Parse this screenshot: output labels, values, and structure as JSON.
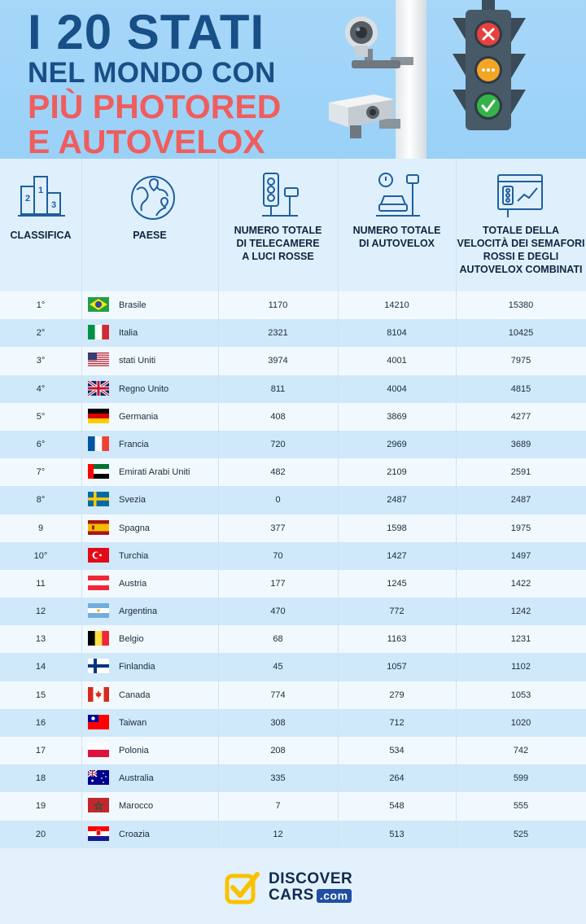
{
  "title": {
    "line1": "I 20 STATI",
    "line2": "NEL MONDO CON",
    "line3": "PIÙ PHOTORED",
    "line4": "E AUTOVELOX"
  },
  "columns": {
    "rank": "CLASSIFICA",
    "country": "PAESE",
    "red_light": [
      "NUMERO TOTALE",
      "DI TELECAMERE",
      "A LUCI ROSSE"
    ],
    "speed": [
      "NUMERO TOTALE",
      "DI AUTOVELOX"
    ],
    "total": [
      "TOTALE DELLA",
      "VELOCITÀ DEI SEMAFORI",
      "ROSSI E DEGLI",
      "AUTOVELOX COMBINATI"
    ]
  },
  "icons": {
    "rank": "podium-icon",
    "country": "globe-icon",
    "red_light": "traffic-camera-icon",
    "speed": "speed-camera-icon",
    "total": "stats-dashboard-icon"
  },
  "colors": {
    "title_blue": "#184f86",
    "title_red": "#ef5d5d",
    "row_alt": "#cfe8fa",
    "row_base": "#f2f9fe",
    "logo_yellow": "#f8c200",
    "logo_navy": "#0f2a4e"
  },
  "chart_data": {
    "type": "table",
    "columns": [
      "CLASSIFICA",
      "PAESE",
      "NUMERO TOTALE DI TELECAMERE A LUCI ROSSE",
      "NUMERO TOTALE DI AUTOVELOX",
      "TOTALE DELLA VELOCITÀ DEI SEMAFORI ROSSI E DEGLI AUTOVELOX COMBINATI"
    ],
    "rows": [
      {
        "rank": "1°",
        "country": "Brasile",
        "flag": "br",
        "red_light": 1170,
        "speed": 14210,
        "total": 15380
      },
      {
        "rank": "2°",
        "country": "Italia",
        "flag": "it",
        "red_light": 2321,
        "speed": 8104,
        "total": 10425
      },
      {
        "rank": "3°",
        "country": "stati Uniti",
        "flag": "us",
        "red_light": 3974,
        "speed": 4001,
        "total": 7975
      },
      {
        "rank": "4°",
        "country": "Regno Unito",
        "flag": "gb",
        "red_light": 811,
        "speed": 4004,
        "total": 4815
      },
      {
        "rank": "5°",
        "country": "Germania",
        "flag": "de",
        "red_light": 408,
        "speed": 3869,
        "total": 4277
      },
      {
        "rank": "6°",
        "country": "Francia",
        "flag": "fr",
        "red_light": 720,
        "speed": 2969,
        "total": 3689
      },
      {
        "rank": "7°",
        "country": "Emirati Arabi Uniti",
        "flag": "ae",
        "red_light": 482,
        "speed": 2109,
        "total": 2591
      },
      {
        "rank": "8°",
        "country": "Svezia",
        "flag": "se",
        "red_light": 0,
        "speed": 2487,
        "total": 2487
      },
      {
        "rank": "9",
        "country": "Spagna",
        "flag": "es",
        "red_light": 377,
        "speed": 1598,
        "total": 1975
      },
      {
        "rank": "10°",
        "country": "Turchia",
        "flag": "tr",
        "red_light": 70,
        "speed": 1427,
        "total": 1497
      },
      {
        "rank": "11",
        "country": "Austria",
        "flag": "at",
        "red_light": 177,
        "speed": 1245,
        "total": 1422
      },
      {
        "rank": "12",
        "country": "Argentina",
        "flag": "ar",
        "red_light": 470,
        "speed": 772,
        "total": 1242
      },
      {
        "rank": "13",
        "country": "Belgio",
        "flag": "be",
        "red_light": 68,
        "speed": 1163,
        "total": 1231
      },
      {
        "rank": "14",
        "country": "Finlandia",
        "flag": "fi",
        "red_light": 45,
        "speed": 1057,
        "total": 1102
      },
      {
        "rank": "15",
        "country": "Canada",
        "flag": "ca",
        "red_light": 774,
        "speed": 279,
        "total": 1053
      },
      {
        "rank": "16",
        "country": "Taiwan",
        "flag": "tw",
        "red_light": 308,
        "speed": 712,
        "total": 1020
      },
      {
        "rank": "17",
        "country": "Polonia",
        "flag": "pl",
        "red_light": 208,
        "speed": 534,
        "total": 742
      },
      {
        "rank": "18",
        "country": "Australia",
        "flag": "au",
        "red_light": 335,
        "speed": 264,
        "total": 599
      },
      {
        "rank": "19",
        "country": "Marocco",
        "flag": "ma",
        "red_light": 7,
        "speed": 548,
        "total": 555
      },
      {
        "rank": "20",
        "country": "Croazia",
        "flag": "hr",
        "red_light": 12,
        "speed": 513,
        "total": 525
      }
    ]
  },
  "footer": {
    "logo_line1": "DISCOVER",
    "logo_line2": "CARS",
    "logo_domain": ".com",
    "logo_icon": "checkmark-logo-icon"
  }
}
